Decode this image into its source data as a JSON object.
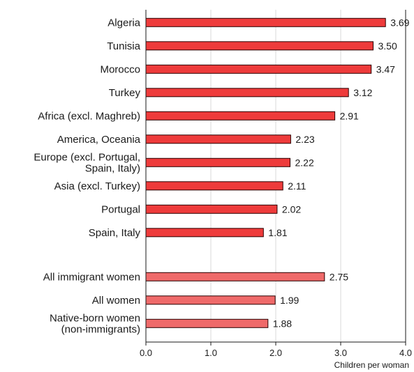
{
  "chart_data": {
    "type": "bar",
    "orientation": "horizontal",
    "title": "",
    "xlabel": "Children per woman",
    "ylabel": "",
    "xlim": [
      0,
      4
    ],
    "xticks": [
      "0.0",
      "1.0",
      "2.0",
      "3.0",
      "4.0"
    ],
    "grid": true,
    "legend": "none",
    "colors": {
      "origin": "#ee3b3b",
      "summary": "#ef6a6a",
      "edge": "#2a0000"
    },
    "groups": [
      {
        "name": "",
        "items": [
          {
            "label": [
              "Algeria"
            ],
            "value": 3.69,
            "value_label": "3.69"
          },
          {
            "label": [
              "Tunisia"
            ],
            "value": 3.5,
            "value_label": "3.50"
          },
          {
            "label": [
              "Morocco"
            ],
            "value": 3.47,
            "value_label": "3.47"
          },
          {
            "label": [
              "Turkey"
            ],
            "value": 3.12,
            "value_label": "3.12"
          },
          {
            "label": [
              "Africa (excl. Maghreb)"
            ],
            "value": 2.91,
            "value_label": "2.91"
          },
          {
            "label": [
              "America, Oceania"
            ],
            "value": 2.23,
            "value_label": "2.23"
          },
          {
            "label": [
              "Europe (excl. Portugal,",
              "Spain, Italy)"
            ],
            "value": 2.22,
            "value_label": "2.22"
          },
          {
            "label": [
              "Asia (excl. Turkey)"
            ],
            "value": 2.11,
            "value_label": "2.11"
          },
          {
            "label": [
              "Portugal"
            ],
            "value": 2.02,
            "value_label": "2.02"
          },
          {
            "label": [
              "Spain, Italy"
            ],
            "value": 1.81,
            "value_label": "1.81"
          }
        ]
      },
      {
        "name": "",
        "items": [
          {
            "label": [
              "All immigrant women"
            ],
            "value": 2.75,
            "value_label": "2.75"
          },
          {
            "label": [
              "All women"
            ],
            "value": 1.99,
            "value_label": "1.99"
          },
          {
            "label": [
              "Native-born women",
              "(non-immigrants)"
            ],
            "value": 1.88,
            "value_label": "1.88"
          }
        ]
      }
    ]
  }
}
